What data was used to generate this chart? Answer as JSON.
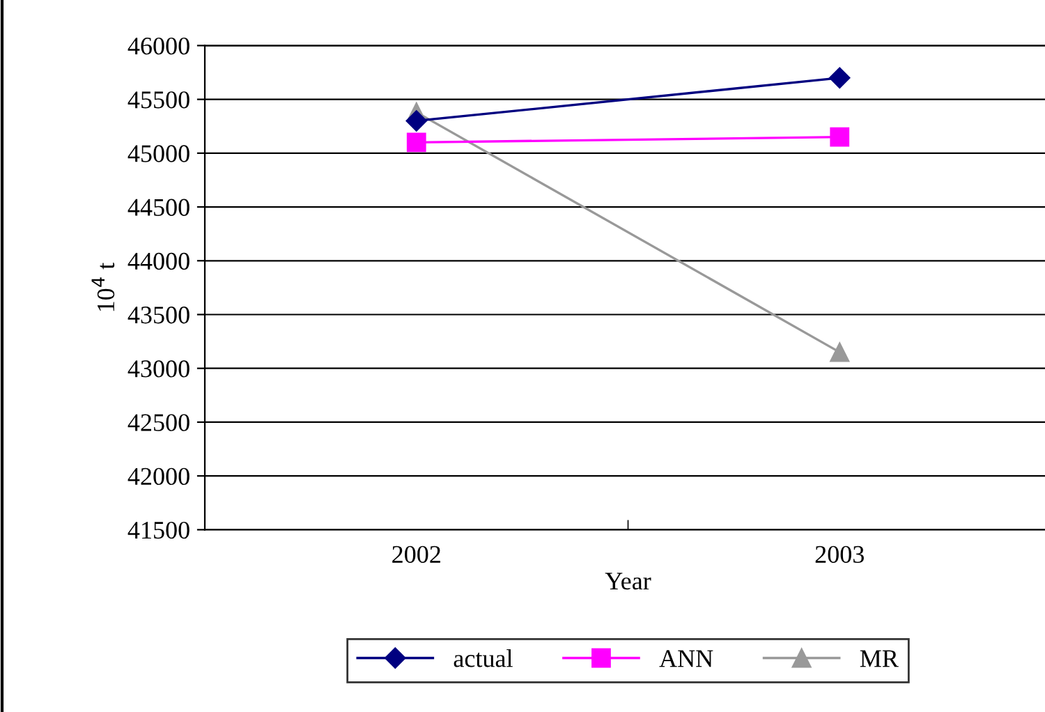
{
  "chart_data": {
    "type": "line",
    "xlabel": "Year",
    "ylabel": "10$^{4}$ t",
    "categories": [
      "2002",
      "2003"
    ],
    "series": [
      {
        "name": "actual",
        "color": "#000080",
        "values": [
          45300,
          45700
        ],
        "marker": "diamond"
      },
      {
        "name": "ANN",
        "color": "#ff00ff",
        "values": [
          45100,
          45150
        ],
        "marker": "square"
      },
      {
        "name": "MR",
        "color": "#999999",
        "values": [
          45380,
          43150
        ],
        "marker": "triangle"
      }
    ],
    "ylim": [
      41500,
      46000
    ],
    "yticks": [
      41500,
      42000,
      42500,
      43000,
      43500,
      44000,
      44500,
      45000,
      45500,
      46000
    ],
    "grid": "y",
    "legend": "bottom"
  }
}
